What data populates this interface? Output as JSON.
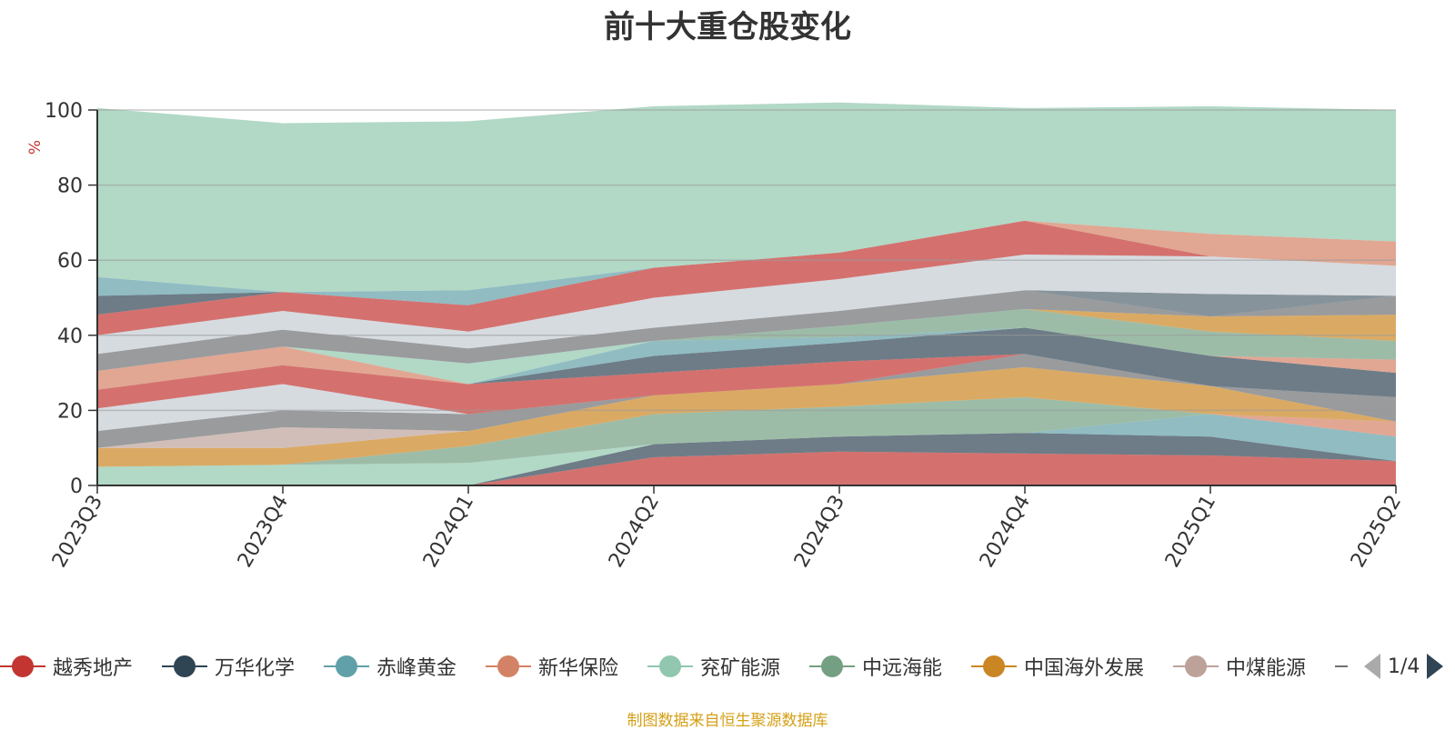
{
  "title": "前十大重仓股变化",
  "source_note": "制图数据来自恒生聚源数据库",
  "legend_page": "1/4",
  "chart_data": {
    "type": "area",
    "stacked": true,
    "ylabel": "%",
    "ylim": [
      0,
      100
    ],
    "yticks": [
      0,
      20,
      40,
      60,
      80,
      100
    ],
    "categories": [
      "2023Q3",
      "2023Q4",
      "2024Q1",
      "2024Q2",
      "2024Q3",
      "2024Q4",
      "2025Q1",
      "2025Q2"
    ],
    "grid": true,
    "legend_position": "bottom",
    "layers": [
      {
        "color": "#c23531",
        "values": [
          0,
          0,
          0,
          7.5,
          9,
          8.5,
          8,
          6.5
        ]
      },
      {
        "color": "#2f4554",
        "values": [
          0,
          0,
          0,
          3.5,
          4,
          5.5,
          5,
          0
        ]
      },
      {
        "color": "#61a0a8",
        "values": [
          0,
          0,
          0,
          0,
          0,
          0,
          6,
          6.5
        ]
      },
      {
        "color": "#d48265",
        "values": [
          0,
          0,
          0,
          0,
          0,
          0,
          0,
          4
        ]
      },
      {
        "color": "#91c7ae",
        "values": [
          5,
          5.5,
          6,
          0,
          0,
          0,
          0,
          0
        ]
      },
      {
        "color": "#749f83",
        "values": [
          0,
          0,
          4.5,
          8,
          8,
          9.5,
          0,
          0
        ]
      },
      {
        "color": "#ca8622",
        "values": [
          5,
          4.5,
          4,
          5,
          6,
          8,
          7.5,
          0
        ]
      },
      {
        "color": "#bda29a",
        "values": [
          0,
          5.5,
          0,
          0,
          0,
          0,
          0,
          0
        ]
      },
      {
        "color": "#6e7074",
        "values": [
          4.5,
          4.5,
          4.5,
          0,
          0,
          3.5,
          0,
          6.5
        ]
      },
      {
        "color": "#c4ccd3",
        "values": [
          6,
          7,
          0,
          0,
          0,
          0,
          0,
          0
        ]
      },
      {
        "color": "#c23531",
        "values": [
          5,
          5,
          8,
          6,
          6,
          0,
          0,
          0
        ]
      },
      {
        "color": "#2f4554",
        "values": [
          0,
          0,
          0,
          4.5,
          5,
          7,
          8,
          6.5
        ]
      },
      {
        "color": "#61a0a8",
        "values": [
          0,
          0,
          0,
          4,
          1.5,
          0,
          0,
          0
        ]
      },
      {
        "color": "#d48265",
        "values": [
          5,
          5,
          0,
          0,
          0,
          0,
          0,
          3.5
        ]
      },
      {
        "color": "#91c7ae",
        "values": [
          0,
          0,
          5.5,
          0,
          0,
          0,
          0,
          0
        ]
      },
      {
        "color": "#749f83",
        "values": [
          0,
          0,
          0,
          0,
          3,
          5,
          6.5,
          5
        ]
      },
      {
        "color": "#ca8622",
        "values": [
          0,
          0,
          0,
          0,
          0,
          0,
          4,
          7
        ]
      },
      {
        "color": "#bda29a",
        "values": [
          0,
          0,
          0,
          0,
          0,
          0,
          0,
          0
        ]
      },
      {
        "color": "#6e7074",
        "values": [
          4.5,
          4.5,
          4,
          3.5,
          4,
          5,
          0,
          5
        ]
      },
      {
        "color": "#546570",
        "values": [
          0,
          0,
          0,
          0,
          0,
          0,
          6,
          0
        ]
      },
      {
        "color": "#c4ccd3",
        "values": [
          5,
          5,
          4.5,
          8,
          8.5,
          9.5,
          10,
          8
        ]
      },
      {
        "color": "#c23531",
        "values": [
          5.5,
          5,
          7,
          8,
          7,
          9,
          0,
          0
        ]
      },
      {
        "color": "#d48265",
        "values": [
          0,
          0,
          0,
          0,
          0,
          0,
          6,
          6.5
        ]
      },
      {
        "color": "#2f4554",
        "values": [
          5,
          0,
          0,
          0,
          0,
          0,
          0,
          0
        ]
      },
      {
        "color": "#61a0a8",
        "values": [
          5,
          0,
          4,
          0,
          0,
          0,
          0,
          0
        ]
      },
      {
        "color": "#91c7ae",
        "values": [
          45,
          45,
          45,
          43,
          40,
          30,
          34,
          35
        ]
      }
    ],
    "legend": [
      {
        "name": "越秀地产",
        "color": "#c23531"
      },
      {
        "name": "万华化学",
        "color": "#2f4554"
      },
      {
        "name": "赤峰黄金",
        "color": "#61a0a8"
      },
      {
        "name": "新华保险",
        "color": "#d48265"
      },
      {
        "name": "兖矿能源",
        "color": "#91c7ae"
      },
      {
        "name": "中远海能",
        "color": "#749f83"
      },
      {
        "name": "中国海外发展",
        "color": "#ca8622"
      },
      {
        "name": "中煤能源",
        "color": "#bda29a"
      }
    ]
  }
}
